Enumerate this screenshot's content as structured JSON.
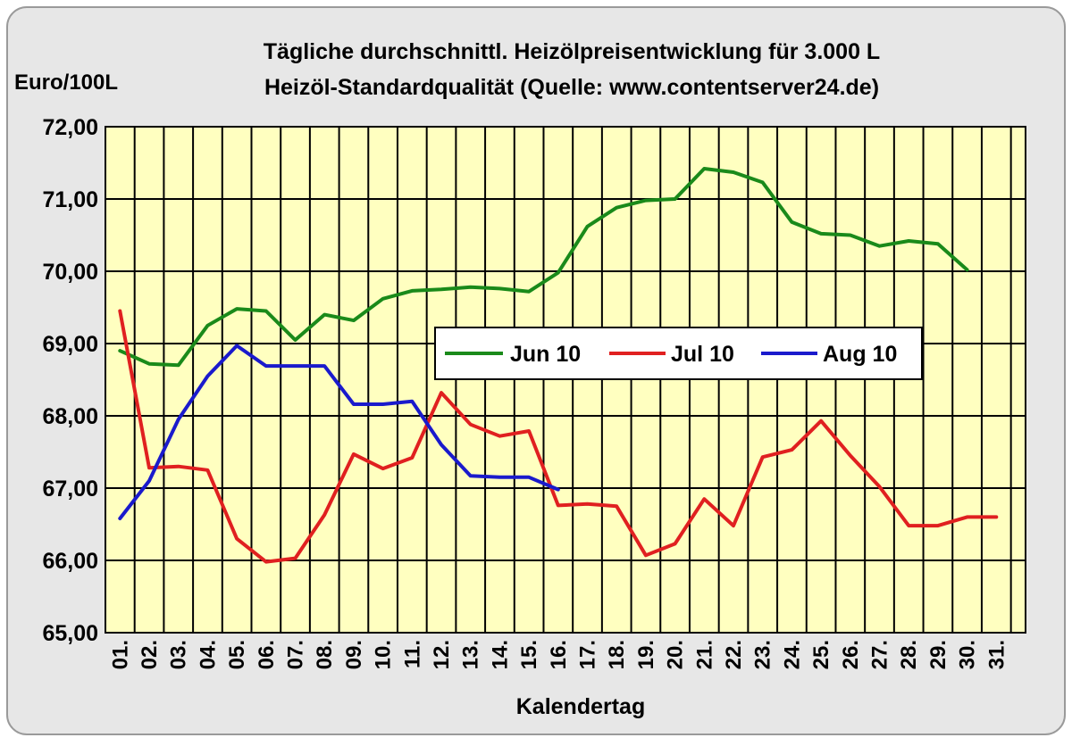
{
  "chart_data": {
    "type": "line",
    "title_line1": "Tägliche durchschnittl. Heizölpreisentwicklung für 3.000 L",
    "title_line2": "Heizöl-Standardqualität (Quelle: www.contentserver24.de)",
    "ylabel": "Euro/100L",
    "xlabel": "Kalendertag",
    "ylim": [
      65,
      72
    ],
    "yticks": [
      "65,00",
      "66,00",
      "67,00",
      "68,00",
      "69,00",
      "70,00",
      "71,00",
      "72,00"
    ],
    "x": [
      "01.",
      "02.",
      "03.",
      "04.",
      "05.",
      "06.",
      "07.",
      "08.",
      "09.",
      "10.",
      "11.",
      "12.",
      "13.",
      "14.",
      "15.",
      "16.",
      "17.",
      "18.",
      "19.",
      "20.",
      "21.",
      "22.",
      "23.",
      "24.",
      "25.",
      "26.",
      "27.",
      "28.",
      "29.",
      "30.",
      "31."
    ],
    "grid": true,
    "legend_position": "center",
    "series": [
      {
        "name": "Jun 10",
        "color": "#1a8a1a",
        "values": [
          68.9,
          68.72,
          68.7,
          69.25,
          69.48,
          69.45,
          69.05,
          69.4,
          69.32,
          69.62,
          69.73,
          69.75,
          69.78,
          69.76,
          69.72,
          69.98,
          70.62,
          70.88,
          70.98,
          71.0,
          71.42,
          71.37,
          71.23,
          70.68,
          70.52,
          70.5,
          70.35,
          70.42,
          70.38,
          70.02,
          null
        ]
      },
      {
        "name": "Jul 10",
        "color": "#e02020",
        "values": [
          69.45,
          67.28,
          67.3,
          67.25,
          66.3,
          65.98,
          66.03,
          66.63,
          67.47,
          67.27,
          67.42,
          68.32,
          67.88,
          67.72,
          67.79,
          66.76,
          66.78,
          66.75,
          66.07,
          66.23,
          66.85,
          66.48,
          67.43,
          67.53,
          67.93,
          67.45,
          67.02,
          66.48,
          66.48,
          66.6,
          66.6
        ]
      },
      {
        "name": "Aug 10",
        "color": "#1a1acc",
        "values": [
          66.58,
          67.1,
          67.95,
          68.55,
          68.97,
          68.69,
          68.69,
          68.69,
          68.16,
          68.16,
          68.2,
          67.6,
          67.17,
          67.15,
          67.15,
          66.98,
          null,
          null,
          null,
          null,
          null,
          null,
          null,
          null,
          null,
          null,
          null,
          null,
          null,
          null,
          null
        ]
      }
    ]
  }
}
